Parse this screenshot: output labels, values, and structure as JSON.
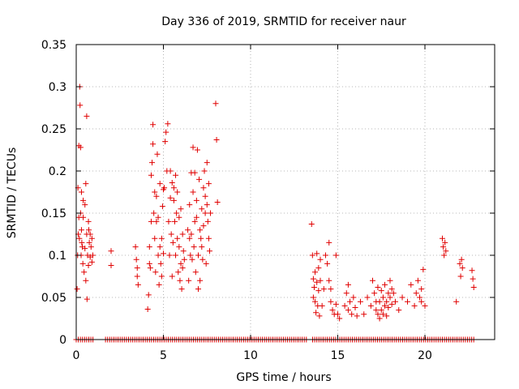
{
  "chart_data": {
    "type": "scatter",
    "title": "Day 336 of 2019, SRMTID for receiver naur",
    "xlabel": "GPS time / hours",
    "ylabel": "SRMTID / TECUs",
    "xlim": [
      0,
      24
    ],
    "ylim": [
      0,
      0.35
    ],
    "grid": true,
    "marker": "+",
    "marker_color": "#e00000",
    "xticks": [
      0,
      5,
      10,
      15,
      20
    ],
    "yticks": [
      0,
      0.05,
      0.1,
      0.15,
      0.2,
      0.25,
      0.3,
      0.35
    ],
    "xtick_labels": [
      "0",
      "5",
      "10",
      "15",
      "20"
    ],
    "ytick_labels": [
      "0",
      "0.05",
      "0.1",
      "0.15",
      "0.2",
      "0.25",
      "0.3",
      "0.35"
    ],
    "series": [
      {
        "name": "SRMTID",
        "x": [
          0.05,
          0.08,
          0.1,
          0.12,
          0.15,
          0.15,
          0.18,
          0.2,
          0.22,
          0.25,
          0.25,
          0.28,
          0.3,
          0.3,
          0.32,
          0.35,
          0.38,
          0.4,
          0.4,
          0.45,
          0.5,
          0.5,
          0.55,
          0.55,
          0.6,
          0.6,
          0.62,
          0.65,
          0.7,
          0.7,
          0.72,
          0.75,
          0.8,
          0.8,
          0.85,
          0.9,
          0.9,
          0.95,
          2.0,
          2.0,
          3.4,
          3.45,
          3.5,
          3.5,
          3.55,
          4.1,
          4.15,
          4.2,
          4.2,
          4.25,
          4.3,
          4.3,
          4.35,
          4.4,
          4.4,
          4.45,
          4.5,
          4.5,
          4.55,
          4.6,
          4.6,
          4.65,
          4.7,
          4.7,
          4.75,
          4.8,
          4.8,
          4.85,
          4.9,
          4.9,
          4.95,
          5.0,
          5.0,
          5.05,
          5.1,
          5.15,
          5.2,
          5.25,
          5.3,
          5.35,
          5.4,
          5.4,
          5.45,
          5.5,
          5.5,
          5.55,
          5.6,
          5.6,
          5.65,
          5.7,
          5.7,
          5.75,
          5.8,
          5.8,
          5.85,
          5.9,
          5.9,
          5.95,
          6.0,
          6.0,
          6.05,
          6.1,
          6.1,
          6.15,
          6.2,
          6.4,
          6.45,
          6.5,
          6.5,
          6.55,
          6.6,
          6.6,
          6.65,
          6.7,
          6.7,
          6.75,
          6.8,
          6.8,
          6.85,
          6.9,
          6.9,
          6.95,
          7.0,
          7.0,
          7.05,
          7.1,
          7.1,
          7.15,
          7.2,
          7.2,
          7.25,
          7.3,
          7.3,
          7.35,
          7.4,
          7.4,
          7.45,
          7.5,
          7.5,
          7.55,
          7.6,
          7.6,
          7.65,
          7.7,
          8.0,
          8.05,
          8.1,
          13.5,
          13.55,
          13.6,
          13.6,
          13.65,
          13.7,
          13.7,
          13.75,
          13.8,
          13.8,
          13.85,
          13.9,
          13.9,
          13.95,
          14.0,
          14.0,
          14.1,
          14.2,
          14.3,
          14.4,
          14.5,
          14.5,
          14.6,
          14.6,
          14.7,
          14.8,
          14.9,
          14.9,
          15.0,
          15.1,
          15.4,
          15.5,
          15.6,
          15.6,
          15.7,
          15.8,
          15.9,
          16.0,
          16.1,
          16.3,
          16.5,
          16.7,
          16.9,
          17.0,
          17.1,
          17.2,
          17.2,
          17.3,
          17.3,
          17.4,
          17.4,
          17.5,
          17.5,
          17.6,
          17.6,
          17.7,
          17.7,
          17.8,
          17.8,
          17.9,
          17.9,
          18.0,
          18.0,
          18.1,
          18.1,
          18.2,
          18.3,
          18.5,
          18.7,
          19.0,
          19.2,
          19.4,
          19.5,
          19.6,
          19.7,
          19.8,
          19.8,
          19.9,
          20.0,
          21.0,
          21.05,
          21.1,
          21.15,
          21.2,
          21.8,
          22.0,
          22.05,
          22.1,
          22.15,
          22.7,
          22.75,
          22.8
        ],
        "y": [
          0.06,
          0.1,
          0.18,
          0.125,
          0.145,
          0.23,
          0.12,
          0.3,
          0.278,
          0.228,
          0.15,
          0.1,
          0.13,
          0.175,
          0.115,
          0.11,
          0.09,
          0.145,
          0.165,
          0.08,
          0.108,
          0.16,
          0.185,
          0.07,
          0.125,
          0.265,
          0.048,
          0.1,
          0.088,
          0.14,
          0.13,
          0.115,
          0.098,
          0.125,
          0.11,
          0.092,
          0.12,
          0.1,
          0.105,
          0.088,
          0.11,
          0.095,
          0.085,
          0.075,
          0.065,
          0.036,
          0.053,
          0.09,
          0.11,
          0.085,
          0.14,
          0.195,
          0.21,
          0.255,
          0.232,
          0.15,
          0.12,
          0.175,
          0.08,
          0.14,
          0.17,
          0.22,
          0.1,
          0.145,
          0.065,
          0.185,
          0.11,
          0.09,
          0.12,
          0.075,
          0.158,
          0.102,
          0.178,
          0.18,
          0.235,
          0.246,
          0.2,
          0.256,
          0.14,
          0.1,
          0.2,
          0.168,
          0.125,
          0.186,
          0.075,
          0.115,
          0.165,
          0.18,
          0.14,
          0.195,
          0.1,
          0.15,
          0.12,
          0.175,
          0.08,
          0.145,
          0.11,
          0.07,
          0.155,
          0.09,
          0.06,
          0.125,
          0.085,
          0.105,
          0.095,
          0.13,
          0.07,
          0.12,
          0.16,
          0.1,
          0.125,
          0.198,
          0.095,
          0.228,
          0.175,
          0.11,
          0.14,
          0.198,
          0.08,
          0.165,
          0.145,
          0.225,
          0.06,
          0.1,
          0.19,
          0.13,
          0.07,
          0.12,
          0.155,
          0.11,
          0.095,
          0.18,
          0.135,
          0.2,
          0.15,
          0.17,
          0.09,
          0.16,
          0.21,
          0.14,
          0.185,
          0.12,
          0.105,
          0.15,
          0.28,
          0.237,
          0.163,
          0.137,
          0.1,
          0.072,
          0.05,
          0.062,
          0.045,
          0.08,
          0.032,
          0.068,
          0.102,
          0.04,
          0.058,
          0.085,
          0.028,
          0.07,
          0.095,
          0.04,
          0.06,
          0.1,
          0.09,
          0.115,
          0.07,
          0.045,
          0.06,
          0.035,
          0.03,
          0.042,
          0.1,
          0.03,
          0.025,
          0.04,
          0.055,
          0.065,
          0.035,
          0.045,
          0.03,
          0.05,
          0.038,
          0.028,
          0.045,
          0.03,
          0.05,
          0.04,
          0.07,
          0.055,
          0.045,
          0.035,
          0.03,
          0.062,
          0.025,
          0.045,
          0.035,
          0.058,
          0.03,
          0.05,
          0.04,
          0.065,
          0.028,
          0.045,
          0.055,
          0.038,
          0.05,
          0.07,
          0.042,
          0.06,
          0.055,
          0.045,
          0.035,
          0.05,
          0.045,
          0.065,
          0.04,
          0.055,
          0.07,
          0.05,
          0.06,
          0.045,
          0.083,
          0.04,
          0.12,
          0.11,
          0.1,
          0.115,
          0.105,
          0.045,
          0.09,
          0.075,
          0.095,
          0.085,
          0.082,
          0.072,
          0.062
        ]
      },
      {
        "name": "zero-baseline",
        "x_range": [
          0,
          22.8
        ],
        "x_step": 0.12,
        "y_value": 0,
        "gaps": [
          [
            1.0,
            1.6
          ],
          [
            13.3,
            13.45
          ]
        ]
      }
    ]
  }
}
